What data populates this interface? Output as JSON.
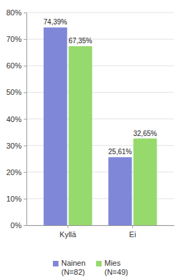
{
  "chart_data": {
    "type": "bar",
    "categories": [
      "Kyllä",
      "Ei"
    ],
    "series": [
      {
        "name": "Nainen (N=82)",
        "color": "#7f87d8",
        "values": [
          74.39,
          25.61
        ],
        "value_labels": [
          "74,39%",
          "25,61%"
        ]
      },
      {
        "name": "Mies (N=49)",
        "color": "#96d96c",
        "values": [
          67.35,
          32.65
        ],
        "value_labels": [
          "67,35%",
          "32,65%"
        ]
      }
    ],
    "ylim": [
      0,
      80
    ],
    "yticks": [
      {
        "value": 0,
        "label": "0%"
      },
      {
        "value": 10,
        "label": "10%"
      },
      {
        "value": 20,
        "label": "20%"
      },
      {
        "value": 30,
        "label": "30%"
      },
      {
        "value": 40,
        "label": "40%"
      },
      {
        "value": 50,
        "label": "50%"
      },
      {
        "value": 60,
        "label": "60%"
      },
      {
        "value": 70,
        "label": "70%"
      },
      {
        "value": 80,
        "label": "80%"
      }
    ],
    "grid": true,
    "data_labels": true,
    "legend": "bottom"
  }
}
